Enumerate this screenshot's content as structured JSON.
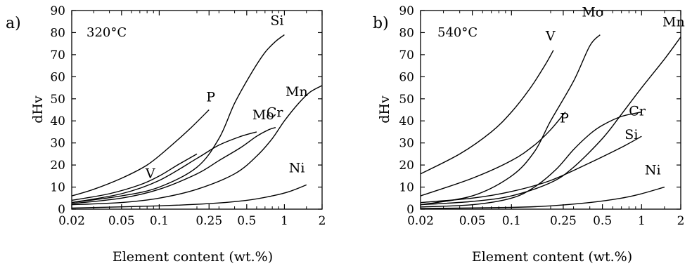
{
  "chart_data": [
    {
      "type": "line",
      "panel_label": "a)",
      "annotation": "320°C",
      "xlabel": "Element content (wt.%)",
      "ylabel": "dHv",
      "xscale": "log",
      "xlim": [
        0.02,
        2
      ],
      "ylim": [
        0,
        90
      ],
      "xticks": [
        0.02,
        0.05,
        0.1,
        0.25,
        0.5,
        1,
        2
      ],
      "xtick_labels": [
        "0.02",
        "0.05",
        "0.1",
        "0.25",
        "0.5",
        "1",
        "2"
      ],
      "yticks": [
        0,
        10,
        20,
        30,
        40,
        50,
        60,
        70,
        80,
        90
      ],
      "ytick_labels": [
        "0",
        "10",
        "20",
        "30",
        "40",
        "50",
        "60",
        "70",
        "80",
        "90"
      ],
      "grid": false,
      "series": [
        {
          "name": "P",
          "x": [
            0.02,
            0.03,
            0.05,
            0.08,
            0.12,
            0.18,
            0.25
          ],
          "y": [
            6,
            9,
            14,
            20,
            28,
            37,
            45
          ]
        },
        {
          "name": "V",
          "x": [
            0.02,
            0.04,
            0.07,
            0.1,
            0.14,
            0.2
          ],
          "y": [
            4,
            7,
            11,
            15,
            20,
            25
          ]
        },
        {
          "name": "Mo",
          "x": [
            0.02,
            0.05,
            0.1,
            0.2,
            0.3,
            0.45,
            0.6
          ],
          "y": [
            3,
            7,
            13,
            23,
            29,
            33,
            35
          ]
        },
        {
          "name": "Si",
          "x": [
            0.02,
            0.05,
            0.1,
            0.2,
            0.3,
            0.4,
            0.55,
            0.7,
            0.85,
            1.0
          ],
          "y": [
            3,
            6,
            10,
            19,
            32,
            48,
            62,
            71,
            76,
            79
          ]
        },
        {
          "name": "Cr",
          "x": [
            0.02,
            0.05,
            0.1,
            0.2,
            0.3,
            0.45,
            0.6,
            0.75,
            0.85
          ],
          "y": [
            2.5,
            5,
            9,
            16,
            22,
            28,
            33,
            36,
            37
          ]
        },
        {
          "name": "Mn",
          "x": [
            0.02,
            0.05,
            0.1,
            0.2,
            0.4,
            0.6,
            0.8,
            1.0,
            1.3,
            1.6,
            2.0
          ],
          "y": [
            2,
            3,
            5,
            9,
            16,
            24,
            32,
            40,
            48,
            53,
            56
          ]
        },
        {
          "name": "Ni",
          "x": [
            0.02,
            0.1,
            0.25,
            0.5,
            0.8,
            1.1,
            1.5
          ],
          "y": [
            0.5,
            1.5,
            2.5,
            4,
            6,
            8,
            11
          ]
        }
      ]
    },
    {
      "type": "line",
      "panel_label": "b)",
      "annotation": "540°C",
      "xlabel": "Element content (wt.%)",
      "ylabel": "dHv",
      "xscale": "log",
      "xlim": [
        0.02,
        2
      ],
      "ylim": [
        0,
        90
      ],
      "xticks": [
        0.02,
        0.05,
        0.1,
        0.25,
        0.5,
        1,
        2
      ],
      "xtick_labels": [
        "0.02",
        "0.05",
        "0.1",
        "0.25",
        "0.5",
        "1",
        "2"
      ],
      "yticks": [
        0,
        10,
        20,
        30,
        40,
        50,
        60,
        70,
        80,
        90
      ],
      "ytick_labels": [
        "0",
        "10",
        "20",
        "30",
        "40",
        "50",
        "60",
        "70",
        "80",
        "90"
      ],
      "grid": false,
      "series": [
        {
          "name": "V",
          "x": [
            0.02,
            0.04,
            0.07,
            0.1,
            0.14,
            0.18,
            0.21
          ],
          "y": [
            16,
            25,
            35,
            44,
            55,
            65,
            72
          ]
        },
        {
          "name": "Mo",
          "x": [
            0.02,
            0.05,
            0.1,
            0.15,
            0.2,
            0.3,
            0.4,
            0.48
          ],
          "y": [
            2,
            6,
            15,
            26,
            40,
            58,
            74,
            79
          ]
        },
        {
          "name": "P",
          "x": [
            0.02,
            0.05,
            0.1,
            0.15,
            0.2,
            0.26
          ],
          "y": [
            6,
            14,
            22,
            29,
            36,
            44
          ]
        },
        {
          "name": "Mn",
          "x": [
            0.02,
            0.05,
            0.1,
            0.2,
            0.3,
            0.5,
            0.7,
            1.0,
            1.5,
            2.0
          ],
          "y": [
            2,
            3.5,
            6,
            12,
            19,
            32,
            43,
            55,
            68,
            78
          ]
        },
        {
          "name": "Cr",
          "x": [
            0.02,
            0.05,
            0.1,
            0.15,
            0.22,
            0.3,
            0.4,
            0.5,
            0.7,
            1.0
          ],
          "y": [
            1,
            2,
            5,
            10,
            18,
            27,
            34,
            38,
            42,
            44
          ]
        },
        {
          "name": "Si",
          "x": [
            0.02,
            0.05,
            0.1,
            0.2,
            0.4,
            0.7,
            1.0
          ],
          "y": [
            3,
            5,
            8,
            13,
            21,
            28,
            33
          ]
        },
        {
          "name": "Ni",
          "x": [
            0.02,
            0.1,
            0.2,
            0.4,
            0.7,
            1.0,
            1.5
          ],
          "y": [
            0.3,
            0.8,
            1.5,
            3,
            5,
            7,
            10
          ]
        }
      ]
    }
  ]
}
